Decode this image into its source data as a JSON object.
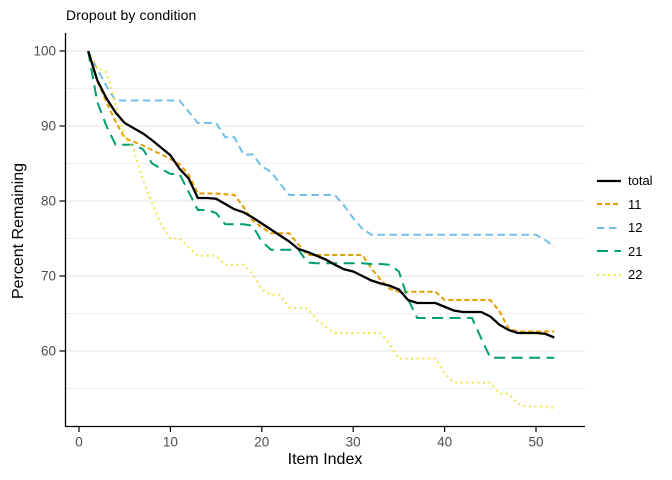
{
  "title": "Dropout by condition",
  "chart_data": {
    "type": "line",
    "title": "Dropout by condition",
    "xlabel": "Item Index",
    "ylabel": "Percent Remaining",
    "x_range": [
      1,
      52
    ],
    "x_ticks": [
      0,
      10,
      20,
      30,
      40,
      50
    ],
    "y_ticks": [
      100,
      90,
      80,
      70,
      60
    ],
    "y_minor_gridlines": [
      95,
      85,
      75,
      65,
      55
    ],
    "ylim": [
      50,
      102.4
    ],
    "xlim": [
      -1.5,
      54.5
    ],
    "grid": "horizontal-only",
    "legend_position": "right",
    "tick_label_color": "#4d4d4d",
    "gridline_color": "#e5e5e5",
    "series": [
      {
        "name": "11",
        "color": "#E69F00",
        "style": "dashed-short",
        "width": 2,
        "values": [
          100,
          96.0,
          93.2,
          90.6,
          88.4,
          87.9,
          87.4,
          86.8,
          86.2,
          85.6,
          84.9,
          83.5,
          81.0,
          81.0,
          81.0,
          80.9,
          80.8,
          79.2,
          77.4,
          76.5,
          75.7,
          75.7,
          75.7,
          74.2,
          72.8,
          72.8,
          72.8,
          72.8,
          72.8,
          72.8,
          72.8,
          71.0,
          69.5,
          68.3,
          67.9,
          67.9,
          67.9,
          67.9,
          67.9,
          66.8,
          66.8,
          66.8,
          66.8,
          66.8,
          66.8,
          65.3,
          63.0,
          62.6,
          62.6,
          62.6,
          62.6,
          62.6
        ]
      },
      {
        "name": "12",
        "color": "#74BFE8",
        "style": "dashed-medium",
        "width": 2,
        "values": [
          100,
          97.6,
          95.3,
          93.4,
          93.4,
          93.4,
          93.4,
          93.4,
          93.4,
          93.4,
          93.4,
          91.9,
          90.4,
          90.4,
          90.4,
          88.5,
          88.5,
          86.2,
          86.2,
          84.6,
          83.9,
          82.3,
          80.8,
          80.8,
          80.8,
          80.8,
          80.8,
          80.8,
          79.4,
          77.7,
          76.3,
          75.5,
          75.5,
          75.5,
          75.5,
          75.5,
          75.5,
          75.5,
          75.5,
          75.5,
          75.5,
          75.5,
          75.5,
          75.5,
          75.5,
          75.5,
          75.5,
          75.5,
          75.5,
          75.5,
          74.8,
          73.9
        ]
      },
      {
        "name": "21",
        "color": "#009E73",
        "style": "dashed-long",
        "width": 2,
        "values": [
          100,
          93.2,
          90.0,
          87.5,
          87.5,
          87.5,
          86.9,
          85.0,
          84.3,
          83.6,
          83.6,
          81.2,
          78.8,
          78.8,
          78.4,
          76.9,
          76.9,
          76.9,
          76.7,
          74.6,
          73.5,
          73.5,
          73.5,
          73.5,
          71.8,
          71.7,
          71.7,
          71.7,
          71.7,
          71.7,
          71.7,
          71.6,
          71.6,
          71.5,
          70.6,
          66.9,
          64.4,
          64.4,
          64.4,
          64.4,
          64.4,
          64.4,
          64.4,
          61.7,
          59.1,
          59.1,
          59.1,
          59.1,
          59.1,
          59.1,
          59.1,
          59.1
        ]
      },
      {
        "name": "22",
        "color": "#F0E442",
        "style": "dotted",
        "width": 2,
        "values": [
          100,
          97.7,
          97.2,
          92.8,
          88.6,
          86.8,
          82.8,
          79.7,
          76.8,
          75.0,
          75.0,
          73.8,
          72.7,
          72.7,
          72.7,
          71.5,
          71.5,
          71.5,
          70.3,
          68.2,
          67.5,
          67.5,
          65.8,
          65.7,
          65.7,
          64.2,
          63.2,
          62.4,
          62.4,
          62.4,
          62.4,
          62.4,
          62.4,
          60.9,
          59.0,
          59.0,
          59.0,
          59.0,
          59.0,
          57.0,
          55.8,
          55.8,
          55.8,
          55.8,
          55.8,
          54.3,
          54.3,
          53.0,
          52.6,
          52.6,
          52.6,
          52.4
        ]
      },
      {
        "name": "total",
        "color": "#000000",
        "style": "solid",
        "width": 2.3,
        "values": [
          100,
          96.1,
          93.7,
          91.8,
          90.4,
          89.7,
          89.0,
          88.1,
          87.1,
          86.1,
          84.3,
          83.0,
          80.4,
          80.4,
          80.3,
          79.6,
          78.9,
          78.5,
          77.8,
          77.0,
          76.2,
          75.4,
          74.6,
          73.6,
          73.2,
          72.7,
          72.2,
          71.5,
          70.9,
          70.6,
          70.0,
          69.4,
          69.0,
          68.7,
          68.2,
          66.8,
          66.4,
          66.4,
          66.4,
          65.9,
          65.4,
          65.2,
          65.2,
          65.2,
          64.6,
          63.5,
          62.8,
          62.4,
          62.4,
          62.4,
          62.3,
          61.8
        ]
      }
    ],
    "legend_order": [
      "total",
      "11",
      "12",
      "21",
      "22"
    ]
  }
}
